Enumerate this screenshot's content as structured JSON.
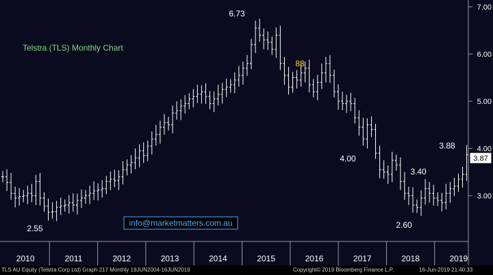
{
  "chart_data": {
    "type": "ohlc",
    "title": "Telstra (TLS) Monthly Chart",
    "x_labels": [
      "2010",
      "2011",
      "2012",
      "2013",
      "2014",
      "2015",
      "2016",
      "2017",
      "2018",
      "2019"
    ],
    "y_ticks": [
      "7.00",
      "6.00",
      "5.00",
      "4.00",
      "3.00"
    ],
    "ylim": [
      2.0,
      7.1
    ],
    "last_price": "3.87",
    "annotations": [
      {
        "id": "a673",
        "text": "6.73",
        "color": "#ffffff"
      },
      {
        "id": "a88",
        "text": "88",
        "color": "#ffd700"
      },
      {
        "id": "a400",
        "text": "4.00",
        "color": "#ffffff"
      },
      {
        "id": "a340",
        "text": "3.40",
        "color": "#ffffff"
      },
      {
        "id": "a388",
        "text": "3.88",
        "color": "#ffffff"
      },
      {
        "id": "a255",
        "text": "2.55",
        "color": "#ffffff"
      },
      {
        "id": "a260",
        "text": "2.60",
        "color": "#ffffff"
      }
    ],
    "colors": {
      "background": "#0b0b1f",
      "bars": "#ffffff",
      "title": "#7fd87f",
      "highlight": "#ffd700",
      "link": "#4aa8ff"
    },
    "url_label": "info@marketmatters.com.au",
    "month_close": [
      3.4,
      3.28,
      3.05,
      2.95,
      2.98,
      3.0,
      3.05,
      3.0,
      3.3,
      2.95,
      2.78,
      2.65,
      2.66,
      2.75,
      2.78,
      2.8,
      2.85,
      2.8,
      2.9,
      2.95,
      3.0,
      3.05,
      3.1,
      3.12,
      3.15,
      3.3,
      3.35,
      3.32,
      3.4,
      3.55,
      3.65,
      3.7,
      3.8,
      3.95,
      3.85,
      4.05,
      4.2,
      4.3,
      4.45,
      4.55,
      4.5,
      4.75,
      4.8,
      4.9,
      4.95,
      5.05,
      5.1,
      5.15,
      5.2,
      5.1,
      4.95,
      5.05,
      5.15,
      5.25,
      5.3,
      5.35,
      5.45,
      5.55,
      5.7,
      5.8,
      6.2,
      6.55,
      6.4,
      6.3,
      6.25,
      6.1,
      6.4,
      5.8,
      5.55,
      5.3,
      5.5,
      5.45,
      5.6,
      5.7,
      5.35,
      5.2,
      5.4,
      5.6,
      5.8,
      5.55,
      5.2,
      5.0,
      4.95,
      5.0,
      4.95,
      4.65,
      4.45,
      4.2,
      4.5,
      4.4,
      3.9,
      3.55,
      3.5,
      3.45,
      3.75,
      3.65,
      3.3,
      3.05,
      3.0,
      2.8,
      2.75,
      2.95,
      3.15,
      3.05,
      2.95,
      2.9,
      2.85,
      3.05,
      3.15,
      3.2,
      3.35,
      3.45,
      3.87
    ]
  },
  "footer": {
    "left": "TLS AU Equity (Telstra Corp Ltd) Graph 217  Monthly 19JUN2004-16JUN2019",
    "center": "Copyright© 2019 Bloomberg Finance L.P.",
    "right": "16-Jun-2019 21:40:33"
  }
}
